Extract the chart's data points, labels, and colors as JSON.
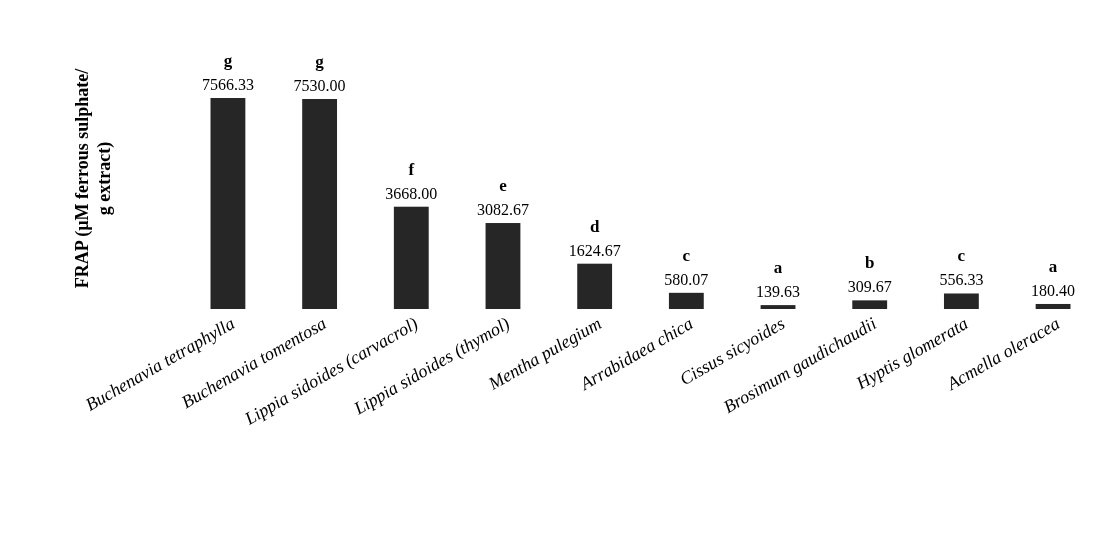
{
  "chart_data": {
    "type": "bar",
    "ylabel": "FRAP (µM ferrous sulphate/ g extract)",
    "categories": [
      "Buchenavia tetraphylla",
      "Buchenavia tomentosa",
      "Lippia sidoides  (carvacrol)",
      "Lippia sidoides  (thymol)",
      "Mentha pulegium",
      "Arrabidaea chica",
      "Cissus sicyoides",
      "Brosimum gaudichaudii",
      "Hyptis glomerata",
      "Acmella oleracea"
    ],
    "values": [
      7566.33,
      7530.0,
      3668.0,
      3082.67,
      1624.67,
      580.07,
      139.63,
      309.67,
      556.33,
      180.4
    ],
    "value_labels": [
      "7566.33",
      "7530.00",
      "3668.00",
      "3082.67",
      "1624.67",
      "580.07",
      "139.63",
      "309.67",
      "556.33",
      "180.40"
    ],
    "color": "#262626",
    "annotations": [
      {
        "text": "g",
        "x": "Buchenavia tetraphylla",
        "y": 7566.33
      },
      {
        "text": "g",
        "x": "Buchenavia tomentosa",
        "y": 7530.0
      },
      {
        "text": "f",
        "x": "Lippia sidoides  (carvacrol)",
        "y": 3668.0
      },
      {
        "text": "e",
        "x": "Lippia sidoides  (thymol)",
        "y": 3082.67
      },
      {
        "text": "d",
        "x": "Mentha pulegium",
        "y": 1624.67
      },
      {
        "text": "c",
        "x": "Arrabidaea chica",
        "y": 580.07
      },
      {
        "text": "a",
        "x": "Cissus sicyoides",
        "y": 139.63
      },
      {
        "text": "b",
        "x": "Brosimum gaudichaudii",
        "y": 309.67
      },
      {
        "text": "c",
        "x": "Hyptis glomerata",
        "y": 556.33
      },
      {
        "text": "a",
        "x": "Acmella oleracea",
        "y": 180.4
      }
    ]
  }
}
